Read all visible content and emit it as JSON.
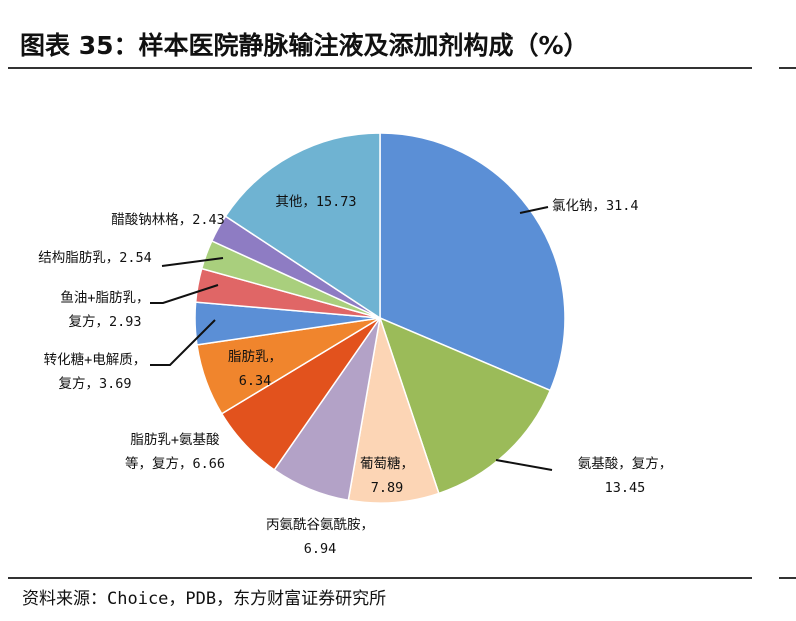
{
  "figure": {
    "title": "图表 35：样本医院静脉输注液及添加剂构成（%）",
    "source": "资料来源：Choice，PDB，东方财富证券研究所"
  },
  "chart_data": {
    "type": "pie",
    "title": "",
    "start_angle_deg": 0,
    "direction": "clockwise",
    "slices": [
      {
        "name": "氯化钠",
        "value": 31.4,
        "color": "#5b8fd6",
        "label_lines": [
          "氯化钠，31.4"
        ]
      },
      {
        "name": "氨基酸，复方",
        "value": 13.45,
        "color": "#9bbb59",
        "label_lines": [
          "氨基酸，复方，",
          "13.45"
        ]
      },
      {
        "name": "葡萄糖",
        "value": 7.89,
        "color": "#fcd5b5",
        "label_lines": [
          "葡萄糖，",
          "7.89"
        ]
      },
      {
        "name": "丙氨酰谷氨酰胺",
        "value": 6.94,
        "color": "#b3a2c7",
        "label_lines": [
          "丙氨酰谷氨酰胺，",
          "6.94"
        ]
      },
      {
        "name": "脂肪乳+氨基酸等，复方",
        "value": 6.66,
        "color": "#e2521d",
        "label_lines": [
          "脂肪乳+氨基酸",
          "等，复方，6.66"
        ]
      },
      {
        "name": "脂肪乳",
        "value": 6.34,
        "color": "#f0852d",
        "label_lines": [
          "脂肪乳，",
          "6.34"
        ]
      },
      {
        "name": "转化糖+电解质，复方",
        "value": 3.69,
        "color": "#5b8fd6",
        "label_lines": [
          "转化糖+电解质，",
          "复方，3.69"
        ]
      },
      {
        "name": "鱼油+脂肪乳，复方",
        "value": 2.93,
        "color": "#e06666",
        "label_lines": [
          "鱼油+脂肪乳，",
          "复方，2.93"
        ]
      },
      {
        "name": "结构脂肪乳",
        "value": 2.54,
        "color": "#a9cf7d",
        "label_lines": [
          "结构脂肪乳，2.54"
        ]
      },
      {
        "name": "醋酸钠林格",
        "value": 2.43,
        "color": "#8e7cc3",
        "label_lines": [
          "醋酸钠林格，2.43"
        ]
      },
      {
        "name": "其他",
        "value": 15.73,
        "color": "#6fb3d2",
        "label_lines": [
          "其他，15.73"
        ]
      }
    ]
  }
}
